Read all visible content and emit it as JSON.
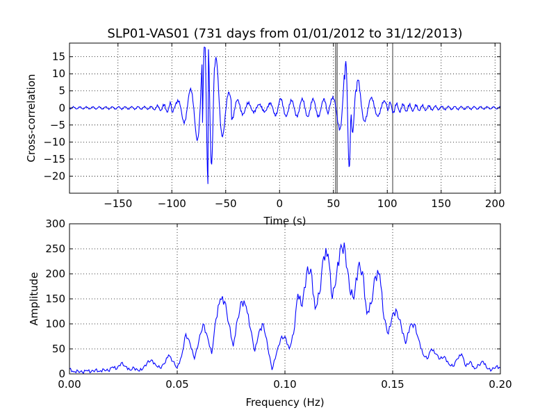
{
  "chart_data": [
    {
      "type": "line",
      "title": "SLP01-VAS01 (731 days from 01/01/2012 to 31/12/2013)",
      "xlabel": "Time (s)",
      "ylabel": "Cross-correlation",
      "xlim": [
        -195,
        205
      ],
      "ylim": [
        -25,
        19
      ],
      "xticks": [
        -150,
        -100,
        -50,
        0,
        50,
        100,
        150,
        200
      ],
      "xticklabels": [
        "−150",
        "−100",
        "−50",
        "0",
        "50",
        "100",
        "150",
        "200"
      ],
      "yticks": [
        15,
        10,
        5,
        0,
        -5,
        -10,
        -15,
        -20
      ],
      "yticklabels": [
        "15",
        "10",
        "5",
        "0",
        "−5",
        "−10",
        "−15",
        "−20"
      ],
      "grid": true,
      "series": [
        {
          "color": "#0000ff",
          "envelope": [
            [
              -195,
              0.3
            ],
            [
              -120,
              0.4
            ],
            [
              -110,
              0.8
            ],
            [
              -100,
              1.5
            ],
            [
              -95,
              1.8
            ],
            [
              -90,
              4
            ],
            [
              -85,
              5
            ],
            [
              -80,
              6
            ],
            [
              -75,
              11
            ],
            [
              -70,
              20
            ],
            [
              -65,
              22
            ],
            [
              -60,
              16
            ],
            [
              -55,
              10
            ],
            [
              -50,
              6
            ],
            [
              -45,
              3.5
            ],
            [
              -40,
              2.5
            ],
            [
              -30,
              1.5
            ],
            [
              -20,
              1.0
            ],
            [
              -10,
              1.2
            ],
            [
              0,
              2.8
            ],
            [
              10,
              2.2
            ],
            [
              20,
              2.6
            ],
            [
              30,
              2.6
            ],
            [
              40,
              2.5
            ],
            [
              50,
              3
            ],
            [
              55,
              5.5
            ],
            [
              60,
              12
            ],
            [
              65,
              18
            ],
            [
              70,
              12
            ],
            [
              75,
              6
            ],
            [
              80,
              3.5
            ],
            [
              90,
              2.5
            ],
            [
              100,
              1.8
            ],
            [
              110,
              1.2
            ],
            [
              130,
              0.8
            ],
            [
              150,
              0.5
            ],
            [
              180,
              0.4
            ],
            [
              205,
              0.3
            ]
          ]
        }
      ],
      "vlines": [
        {
          "x": 52,
          "color": "#808080"
        },
        {
          "x": 53.5,
          "color": "#808080"
        },
        {
          "x": 105,
          "color": "#808080"
        }
      ]
    },
    {
      "type": "line",
      "title": "",
      "xlabel": "Frequency (Hz)",
      "ylabel": "Amplitude",
      "xlim": [
        0,
        0.2
      ],
      "ylim": [
        0,
        300
      ],
      "xticks": [
        0.0,
        0.05,
        0.1,
        0.15,
        0.2
      ],
      "xticklabels": [
        "0.00",
        "0.05",
        "0.10",
        "0.15",
        "0.20"
      ],
      "yticks": [
        0,
        50,
        100,
        150,
        200,
        250,
        300
      ],
      "yticklabels": [
        "0",
        "50",
        "100",
        "150",
        "200",
        "250",
        "300"
      ],
      "grid": true,
      "series": [
        {
          "color": "#0000ff",
          "points": [
            [
              0.0,
              10
            ],
            [
              0.002,
              4
            ],
            [
              0.004,
              6
            ],
            [
              0.006,
              3
            ],
            [
              0.008,
              7
            ],
            [
              0.01,
              4
            ],
            [
              0.012,
              8
            ],
            [
              0.014,
              5
            ],
            [
              0.016,
              9
            ],
            [
              0.018,
              6
            ],
            [
              0.02,
              14
            ],
            [
              0.022,
              10
            ],
            [
              0.024,
              22
            ],
            [
              0.026,
              15
            ],
            [
              0.028,
              8
            ],
            [
              0.03,
              12
            ],
            [
              0.032,
              6
            ],
            [
              0.034,
              10
            ],
            [
              0.036,
              22
            ],
            [
              0.038,
              28
            ],
            [
              0.04,
              18
            ],
            [
              0.042,
              12
            ],
            [
              0.044,
              20
            ],
            [
              0.046,
              38
            ],
            [
              0.048,
              25
            ],
            [
              0.05,
              12
            ],
            [
              0.052,
              35
            ],
            [
              0.054,
              80
            ],
            [
              0.056,
              60
            ],
            [
              0.058,
              30
            ],
            [
              0.06,
              65
            ],
            [
              0.062,
              100
            ],
            [
              0.064,
              75
            ],
            [
              0.066,
              40
            ],
            [
              0.068,
              110
            ],
            [
              0.07,
              150
            ],
            [
              0.072,
              145
            ],
            [
              0.074,
              100
            ],
            [
              0.076,
              55
            ],
            [
              0.078,
              110
            ],
            [
              0.08,
              145
            ],
            [
              0.082,
              135
            ],
            [
              0.084,
              90
            ],
            [
              0.086,
              45
            ],
            [
              0.088,
              85
            ],
            [
              0.09,
              100
            ],
            [
              0.092,
              55
            ],
            [
              0.094,
              8
            ],
            [
              0.096,
              40
            ],
            [
              0.098,
              70
            ],
            [
              0.1,
              75
            ],
            [
              0.102,
              50
            ],
            [
              0.104,
              80
            ],
            [
              0.106,
              160
            ],
            [
              0.108,
              135
            ],
            [
              0.11,
              200
            ],
            [
              0.112,
              210
            ],
            [
              0.114,
              130
            ],
            [
              0.116,
              160
            ],
            [
              0.118,
              235
            ],
            [
              0.12,
              240
            ],
            [
              0.122,
              150
            ],
            [
              0.124,
              200
            ],
            [
              0.126,
              258
            ],
            [
              0.128,
              245
            ],
            [
              0.13,
              170
            ],
            [
              0.132,
              150
            ],
            [
              0.134,
              215
            ],
            [
              0.136,
              205
            ],
            [
              0.138,
              120
            ],
            [
              0.14,
              140
            ],
            [
              0.142,
              195
            ],
            [
              0.144,
              200
            ],
            [
              0.146,
              110
            ],
            [
              0.148,
              80
            ],
            [
              0.15,
              120
            ],
            [
              0.152,
              125
            ],
            [
              0.154,
              95
            ],
            [
              0.156,
              60
            ],
            [
              0.158,
              95
            ],
            [
              0.16,
              100
            ],
            [
              0.162,
              70
            ],
            [
              0.164,
              40
            ],
            [
              0.166,
              30
            ],
            [
              0.168,
              50
            ],
            [
              0.17,
              40
            ],
            [
              0.172,
              30
            ],
            [
              0.174,
              35
            ],
            [
              0.176,
              20
            ],
            [
              0.178,
              15
            ],
            [
              0.18,
              30
            ],
            [
              0.182,
              40
            ],
            [
              0.184,
              15
            ],
            [
              0.186,
              25
            ],
            [
              0.188,
              10
            ],
            [
              0.19,
              18
            ],
            [
              0.192,
              25
            ],
            [
              0.194,
              10
            ],
            [
              0.196,
              8
            ],
            [
              0.198,
              15
            ],
            [
              0.2,
              12
            ]
          ]
        }
      ]
    }
  ]
}
